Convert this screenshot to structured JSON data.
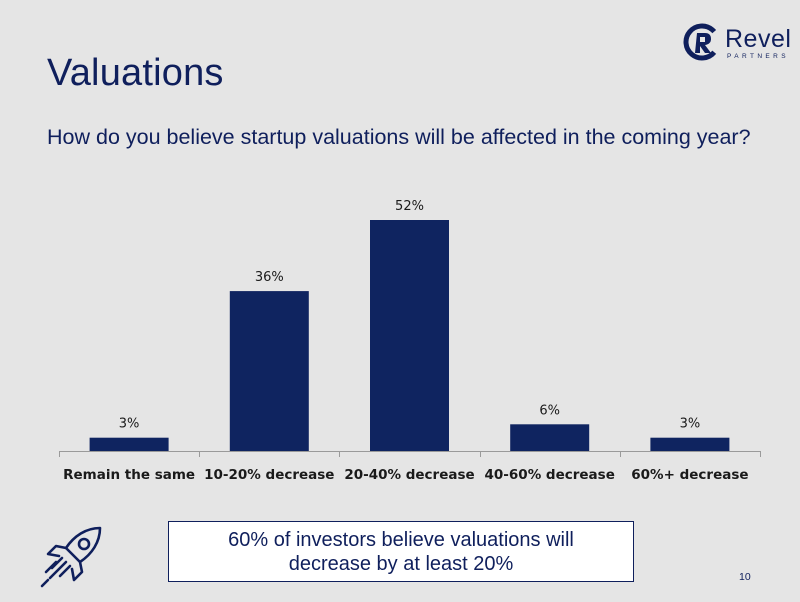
{
  "slide": {
    "title": "Valuations",
    "subtitle": "How do you believe startup valuations will be affected in the coming year?",
    "callout": "60% of investors believe valuations will decrease by at least 20%",
    "page_number": "10",
    "logo": {
      "name": "Revel",
      "tagline": "PARTNERS"
    },
    "icons": {
      "logo_mark": "revel-r-mark",
      "decoration": "rocket"
    },
    "colors": {
      "primary": "#0f1f5c",
      "background": "#e5e5e5",
      "bar": "#0f2460"
    }
  },
  "chart_data": {
    "type": "bar",
    "categories": [
      "Remain the same",
      "10-20% decrease",
      "20-40% decrease",
      "40-60% decrease",
      "60%+ decrease"
    ],
    "values": [
      3,
      36,
      52,
      6,
      3
    ],
    "data_labels": [
      "3%",
      "36%",
      "52%",
      "6%",
      "3%"
    ],
    "title": "",
    "xlabel": "",
    "ylabel": "",
    "ylim": [
      0,
      60
    ],
    "grid": false,
    "legend": "none"
  }
}
